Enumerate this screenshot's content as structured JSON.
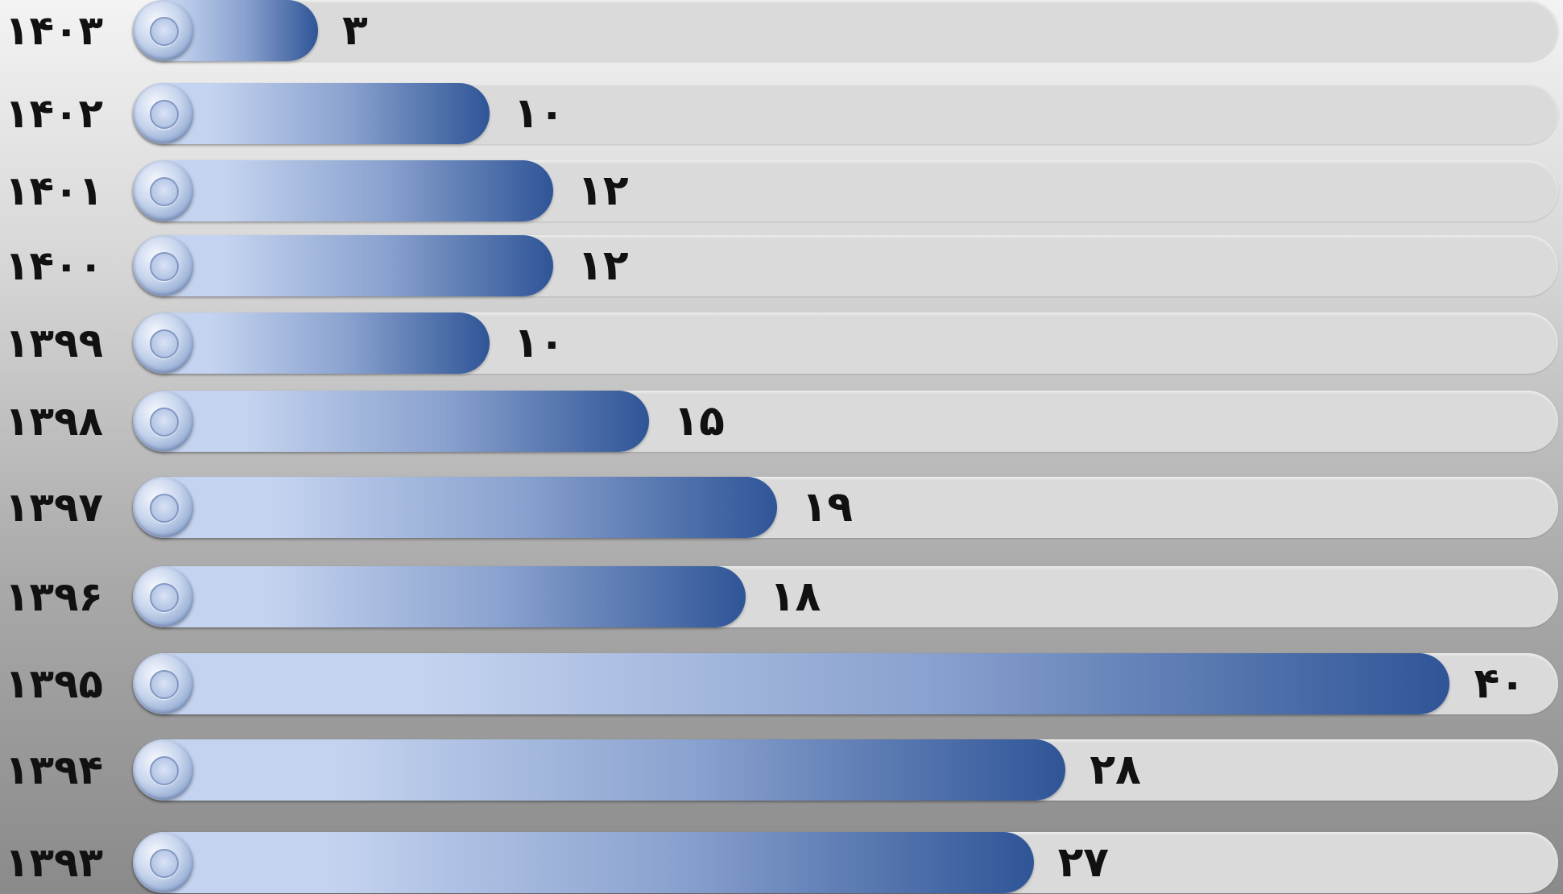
{
  "chart_data": {
    "type": "bar",
    "orientation": "horizontal",
    "title": "",
    "xlabel": "",
    "ylabel": "",
    "categories": [
      "۱۴۰۳",
      "۱۴۰۲",
      "۱۴۰۱",
      "۱۴۰۰",
      "۱۳۹۹",
      "۱۳۹۸",
      "۱۳۹۷",
      "۱۳۹۶",
      "۱۳۹۵",
      "۱۳۹۴",
      "۱۳۹۳"
    ],
    "values": [
      3,
      10,
      12,
      12,
      10,
      15,
      19,
      18,
      40,
      28,
      27
    ],
    "value_labels": [
      "۳",
      "۱۰",
      "۱۲",
      "۱۲",
      "۱۰",
      "۱۵",
      "۱۹",
      "۱۸",
      "۴۰",
      "۲۸",
      "۲۷"
    ],
    "xlim": [
      0,
      42
    ],
    "grid": false,
    "legend": "none",
    "colors": {
      "bar_light": "#c4d3ef",
      "bar_mid": "#8aa2cf",
      "bar_dark": "#2f5597",
      "track": "#dadada",
      "text": "#111111"
    }
  }
}
